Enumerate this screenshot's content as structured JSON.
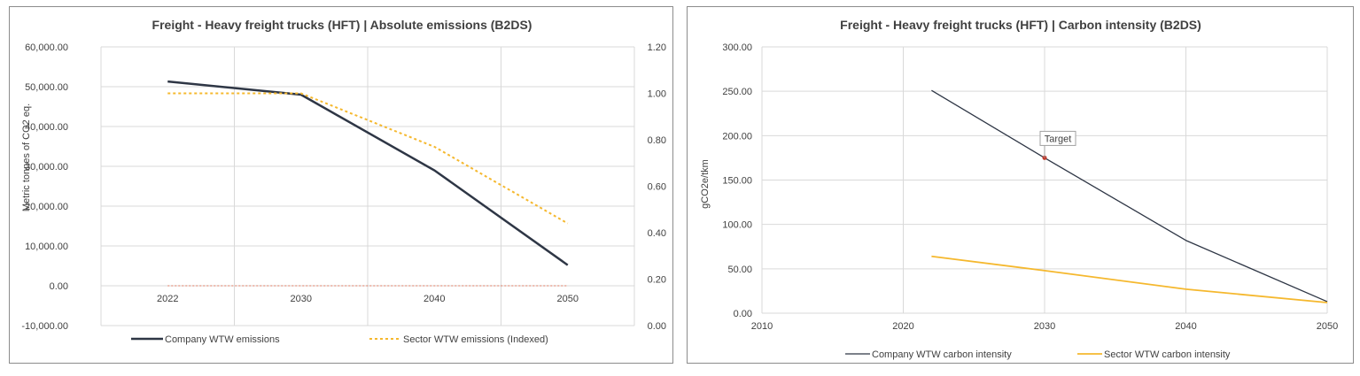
{
  "colors": {
    "company": "#2e3645",
    "sector": "#f5b82e",
    "target": "#c0392b",
    "zero_line": "#e07a5f"
  },
  "chart_data": [
    {
      "type": "line",
      "title": "Freight - Heavy freight trucks (HFT) | Absolute emissions (B2DS)",
      "xlabel": "",
      "ylabel": "Metric tonnes of CO2 eq.",
      "categories": [
        "2022",
        "2030",
        "2040",
        "2050"
      ],
      "ylim": [
        -10000,
        60000
      ],
      "yticks": [
        "60,000.00",
        "50,000.00",
        "40,000.00",
        "30,000.00",
        "20,000.00",
        "10,000.00",
        "0.00",
        "-10,000.00"
      ],
      "y2lim": [
        0,
        1.2
      ],
      "y2ticks": [
        "1.20",
        "1.00",
        "0.80",
        "0.60",
        "0.40",
        "0.20",
        "0.00"
      ],
      "series": [
        {
          "name": "Company WTW emissions",
          "axis": "left",
          "style": "solid",
          "values": [
            51300,
            48000,
            29000,
            5200
          ]
        },
        {
          "name": "Sector WTW emissions (Indexed)",
          "axis": "right",
          "style": "dotted",
          "values": [
            1.0,
            1.0,
            0.77,
            0.44
          ]
        }
      ],
      "legend_position": "bottom",
      "grid": true
    },
    {
      "type": "line",
      "title": "Freight - Heavy freight trucks (HFT) | Carbon intensity (B2DS)",
      "xlabel": "",
      "ylabel": "gCO2e/tkm",
      "xlim": [
        2010,
        2050
      ],
      "xticks": [
        "2010",
        "2020",
        "2030",
        "2040",
        "2050"
      ],
      "ylim": [
        0,
        300
      ],
      "yticks": [
        "300.00",
        "250.00",
        "200.00",
        "150.00",
        "100.00",
        "50.00",
        "0.00"
      ],
      "series": [
        {
          "name": "Company WTW carbon intensity",
          "x": [
            2022,
            2030,
            2040,
            2050
          ],
          "values": [
            251,
            175,
            82,
            13
          ]
        },
        {
          "name": "Sector WTW carbon intensity",
          "x": [
            2022,
            2030,
            2040,
            2050
          ],
          "values": [
            64,
            48,
            27,
            12
          ]
        }
      ],
      "annotation": {
        "label": "Target",
        "x": 2030,
        "y": 175
      },
      "legend_position": "bottom",
      "grid": true
    }
  ]
}
